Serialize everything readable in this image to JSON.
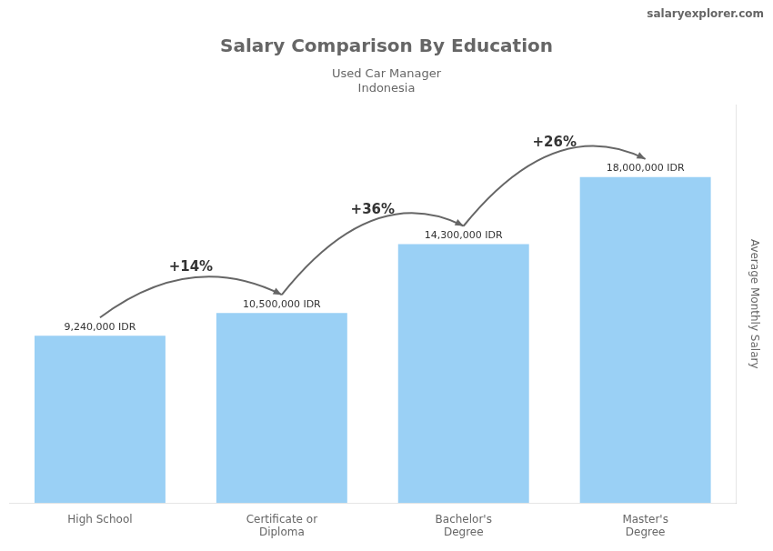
{
  "chart_data": {
    "type": "bar",
    "title": "Salary Comparison By Education",
    "subtitle": [
      "Used Car Manager",
      "Indonesia"
    ],
    "ylabel": "Average Monthly Salary",
    "categories": [
      "High School",
      "Certificate or\nDiploma",
      "Bachelor's\nDegree",
      "Master's\nDegree"
    ],
    "values": [
      9240000,
      10500000,
      14300000,
      18000000
    ],
    "value_labels": [
      "9,240,000 IDR",
      "10,500,000 IDR",
      "14,300,000 IDR",
      "18,000,000 IDR"
    ],
    "data_labels": true,
    "ylim": [
      0,
      22000000
    ],
    "tick_labels": "x",
    "grid": false,
    "annotations": [
      {
        "text": "+14%",
        "from": 0,
        "to": 1
      },
      {
        "text": "+36%",
        "from": 1,
        "to": 2
      },
      {
        "text": "+26%",
        "from": 2,
        "to": 3
      },
      {
        "text": "salaryexplorer.com"
      }
    ]
  }
}
